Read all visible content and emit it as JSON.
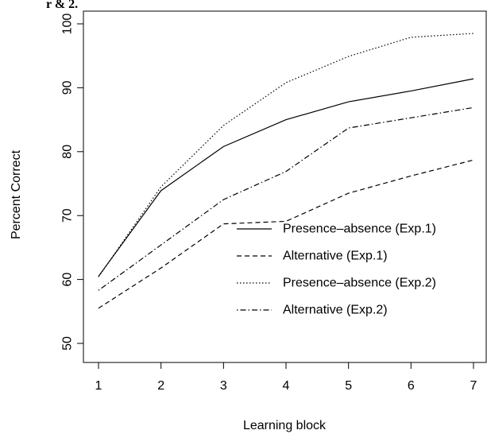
{
  "top_fragment": "r & 2.",
  "chart_data": {
    "type": "line",
    "title": "",
    "xlabel": "Learning block",
    "ylabel": "Percent Correct",
    "x": [
      1,
      2,
      3,
      4,
      5,
      6,
      7
    ],
    "xlim": [
      1,
      7
    ],
    "ylim": [
      50,
      100
    ],
    "xticks": [
      1,
      2,
      3,
      4,
      5,
      6,
      7
    ],
    "yticks": [
      50,
      60,
      70,
      80,
      90,
      100
    ],
    "grid": false,
    "legend_position": "bottom-right",
    "series": [
      {
        "name": "Presence–absence (Exp.1)",
        "line_style": "solid",
        "values": [
          60.5,
          73.9,
          80.8,
          85.0,
          87.8,
          89.5,
          91.4
        ]
      },
      {
        "name": "Alternative (Exp.1)",
        "line_style": "dashed",
        "values": [
          55.5,
          61.8,
          68.7,
          69.1,
          73.5,
          76.2,
          78.7
        ]
      },
      {
        "name": "Presence–absence (Exp.2)",
        "line_style": "dotted",
        "values": [
          60.4,
          74.5,
          84.1,
          90.8,
          94.9,
          97.9,
          98.5
        ]
      },
      {
        "name": "Alternative (Exp.2)",
        "line_style": "dotdash",
        "values": [
          58.3,
          65.4,
          72.5,
          76.9,
          83.7,
          85.3,
          86.9
        ]
      }
    ]
  }
}
